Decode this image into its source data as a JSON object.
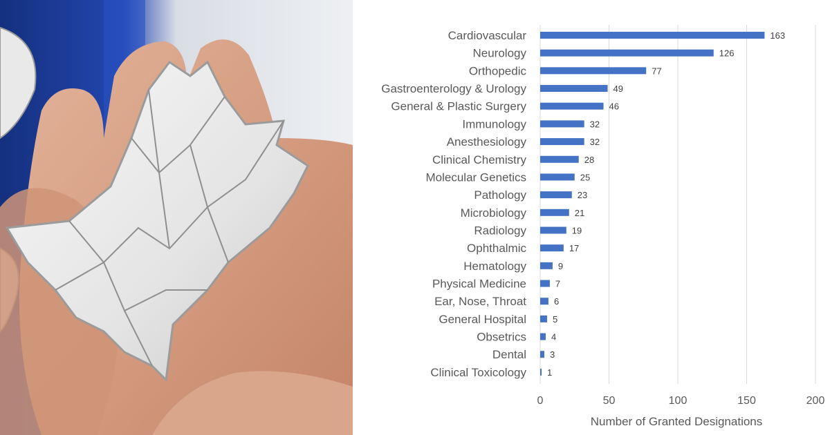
{
  "colors": {
    "bar": "#4472c4",
    "grid": "#d9d9d9",
    "text": "#595959",
    "tray_blue": "#1c3f9e",
    "skin": "#d8a48a",
    "device_white": "#eeeeee"
  },
  "photo": {
    "icon": "stent-device-photo"
  },
  "chart_data": {
    "type": "bar",
    "orientation": "horizontal",
    "categories": [
      "Cardiovascular",
      "Neurology",
      "Orthopedic",
      "Gastroenterology & Urology",
      "General & Plastic Surgery",
      "Immunology",
      "Anesthesiology",
      "Clinical Chemistry",
      "Molecular Genetics",
      "Pathology",
      "Microbiology",
      "Radiology",
      "Ophthalmic",
      "Hematology",
      "Physical Medicine",
      "Ear, Nose, Throat",
      "General Hospital",
      "Obsetrics",
      "Dental",
      "Clinical Toxicology"
    ],
    "values": [
      163,
      126,
      77,
      49,
      46,
      32,
      32,
      28,
      25,
      23,
      21,
      19,
      17,
      9,
      7,
      6,
      5,
      4,
      3,
      1
    ],
    "title": "",
    "xlabel": "Number of Granted Designations",
    "ylabel": "",
    "xlim": [
      0,
      200
    ],
    "xticks": [
      0,
      50,
      100,
      150,
      200
    ],
    "grid": true,
    "data_labels": true,
    "legend": "none"
  }
}
